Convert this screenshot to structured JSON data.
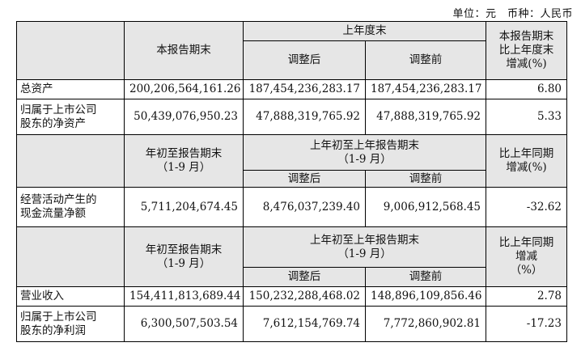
{
  "unit_line": "单位：元　币种：人民币",
  "section1": {
    "header": {
      "col_current": "本报告期末",
      "col_last_year": "上年度末",
      "col_adjusted": "调整后",
      "col_before": "调整前",
      "col_change": [
        "本报告期末",
        "比上年度末",
        "增减(%)"
      ]
    },
    "rows": [
      {
        "label": [
          "总资产"
        ],
        "current": "200,206,564,161.26",
        "adjusted": "187,454,236,283.17",
        "before": "187,454,236,283.17",
        "change": "6.80"
      },
      {
        "label": [
          "归属于上市公司",
          "股东的净资产"
        ],
        "current": "50,439,076,950.23",
        "adjusted": "47,888,319,765.92",
        "before": "47,888,319,765.92",
        "change": "5.33"
      }
    ]
  },
  "section2": {
    "header": {
      "col_current": [
        "年初至报告期末",
        "（1-9 月）"
      ],
      "col_last_year": [
        "上年初至上年报告期末",
        "（1-9 月）"
      ],
      "col_adjusted": "调整后",
      "col_before": "调整前",
      "col_change": [
        "比上年同期",
        "增减(%)"
      ]
    },
    "rows": [
      {
        "label": [
          "经营活动产生的",
          "现金流量净额"
        ],
        "current": "5,711,204,674.45",
        "adjusted": "8,476,037,239.40",
        "before": "9,006,912,568.45",
        "change": "-32.62"
      }
    ]
  },
  "section3": {
    "header": {
      "col_current": [
        "年初至报告期末",
        "（1-9 月）"
      ],
      "col_last_year": [
        "上年初至上年报告期末",
        "（1-9 月）"
      ],
      "col_adjusted": "调整后",
      "col_before": "调整前",
      "col_change": [
        "比上年同期",
        "增减",
        "（%）"
      ]
    },
    "rows": [
      {
        "label": [
          "营业收入"
        ],
        "current": "154,411,813,689.44",
        "adjusted": "150,232,288,468.02",
        "before": "148,896,109,856.46",
        "change": "2.78"
      },
      {
        "label": [
          "归属于上市公司",
          "股东的净利润"
        ],
        "current": "6,300,507,503.54",
        "adjusted": "7,612,154,769.74",
        "before": "7,772,860,902.81",
        "change": "-17.23"
      }
    ]
  }
}
